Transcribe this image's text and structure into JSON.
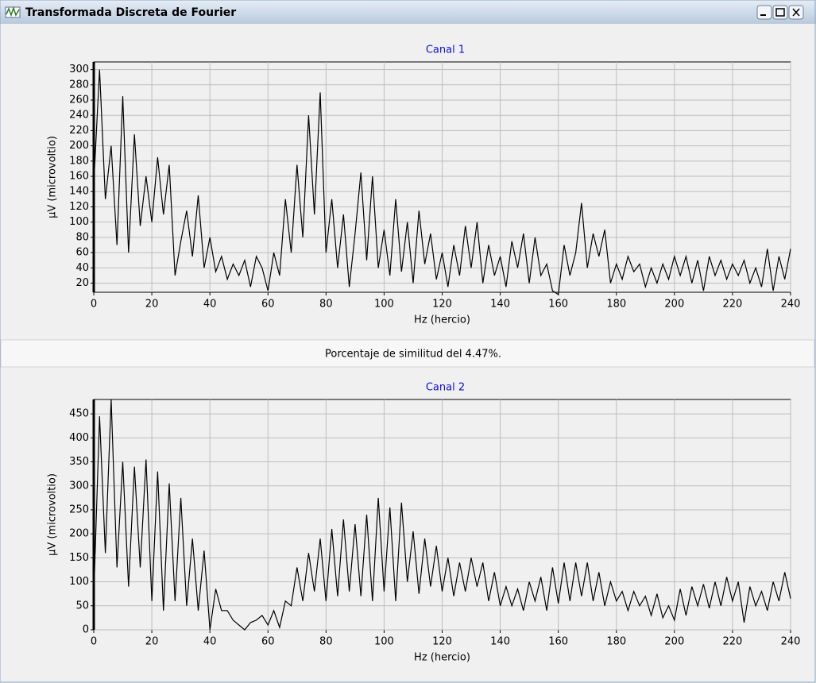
{
  "window": {
    "title": "Transformada Discreta de Fourier"
  },
  "status": "Porcentaje de similitud del 4.47%.",
  "chart_data": [
    {
      "type": "line",
      "title": "Canal 1",
      "x_label": "Hz (hercio)",
      "y_label": "µV (microvoltio)",
      "color": "#000000",
      "grid": true,
      "xlim": [
        0,
        240
      ],
      "xticks": [
        0,
        20,
        40,
        60,
        80,
        100,
        120,
        140,
        160,
        180,
        200,
        220,
        240
      ],
      "ylim": [
        8,
        310
      ],
      "yticks": [
        20,
        40,
        60,
        80,
        100,
        120,
        140,
        160,
        180,
        200,
        220,
        240,
        260,
        280,
        300
      ],
      "x": [
        0,
        2,
        4,
        6,
        8,
        10,
        12,
        14,
        16,
        18,
        20,
        22,
        24,
        26,
        28,
        30,
        32,
        34,
        36,
        38,
        40,
        42,
        44,
        46,
        48,
        50,
        52,
        54,
        56,
        58,
        60,
        62,
        64,
        66,
        68,
        70,
        72,
        74,
        76,
        78,
        80,
        82,
        84,
        86,
        88,
        90,
        92,
        94,
        96,
        98,
        100,
        102,
        104,
        106,
        108,
        110,
        112,
        114,
        116,
        118,
        120,
        122,
        124,
        126,
        128,
        130,
        132,
        134,
        136,
        138,
        140,
        142,
        144,
        146,
        148,
        150,
        152,
        154,
        156,
        158,
        160,
        162,
        164,
        166,
        168,
        170,
        172,
        174,
        176,
        178,
        180,
        182,
        184,
        186,
        188,
        190,
        192,
        194,
        196,
        198,
        200,
        202,
        204,
        206,
        208,
        210,
        212,
        214,
        216,
        218,
        220,
        222,
        224,
        226,
        228,
        230,
        232,
        234,
        236,
        238,
        240
      ],
      "values": [
        150,
        300,
        130,
        200,
        70,
        265,
        60,
        215,
        95,
        160,
        100,
        185,
        110,
        175,
        30,
        75,
        115,
        55,
        135,
        40,
        80,
        35,
        55,
        25,
        45,
        30,
        50,
        15,
        55,
        40,
        10,
        60,
        30,
        130,
        60,
        175,
        80,
        240,
        110,
        270,
        60,
        130,
        40,
        110,
        15,
        85,
        165,
        50,
        160,
        40,
        90,
        30,
        130,
        35,
        100,
        20,
        115,
        45,
        85,
        25,
        60,
        15,
        70,
        30,
        95,
        40,
        100,
        20,
        70,
        30,
        55,
        15,
        75,
        40,
        85,
        20,
        80,
        30,
        45,
        10,
        5,
        70,
        30,
        60,
        125,
        40,
        85,
        55,
        90,
        20,
        45,
        25,
        55,
        35,
        45,
        15,
        40,
        20,
        45,
        25,
        55,
        30,
        55,
        20,
        50,
        10,
        55,
        30,
        50,
        25,
        45,
        30,
        50,
        20,
        40,
        15,
        65,
        10,
        55,
        25,
        65
      ]
    },
    {
      "type": "line",
      "title": "Canal 2",
      "x_label": "Hz (hercio)",
      "y_label": "µV (microvoltio)",
      "color": "#000000",
      "grid": true,
      "xlim": [
        0,
        240
      ],
      "xticks": [
        0,
        20,
        40,
        60,
        80,
        100,
        120,
        140,
        160,
        180,
        200,
        220,
        240
      ],
      "ylim": [
        0,
        480
      ],
      "yticks": [
        0,
        50,
        100,
        150,
        200,
        250,
        300,
        350,
        400,
        450
      ],
      "x": [
        0,
        2,
        4,
        6,
        8,
        10,
        12,
        14,
        16,
        18,
        20,
        22,
        24,
        26,
        28,
        30,
        32,
        34,
        36,
        38,
        40,
        42,
        44,
        46,
        48,
        50,
        52,
        54,
        56,
        58,
        60,
        62,
        64,
        66,
        68,
        70,
        72,
        74,
        76,
        78,
        80,
        82,
        84,
        86,
        88,
        90,
        92,
        94,
        96,
        98,
        100,
        102,
        104,
        106,
        108,
        110,
        112,
        114,
        116,
        118,
        120,
        122,
        124,
        126,
        128,
        130,
        132,
        134,
        136,
        138,
        140,
        142,
        144,
        146,
        148,
        150,
        152,
        154,
        156,
        158,
        160,
        162,
        164,
        166,
        168,
        170,
        172,
        174,
        176,
        178,
        180,
        182,
        184,
        186,
        188,
        190,
        192,
        194,
        196,
        198,
        200,
        202,
        204,
        206,
        208,
        210,
        212,
        214,
        216,
        218,
        220,
        222,
        224,
        226,
        228,
        230,
        232,
        234,
        236,
        238,
        240
      ],
      "values": [
        70,
        445,
        160,
        480,
        130,
        350,
        90,
        340,
        130,
        355,
        60,
        330,
        40,
        305,
        60,
        275,
        50,
        190,
        40,
        165,
        0,
        85,
        40,
        40,
        20,
        10,
        0,
        15,
        20,
        30,
        10,
        40,
        5,
        60,
        50,
        130,
        60,
        160,
        80,
        190,
        60,
        210,
        70,
        230,
        80,
        220,
        70,
        240,
        60,
        275,
        80,
        255,
        60,
        265,
        100,
        205,
        75,
        190,
        90,
        175,
        80,
        150,
        70,
        140,
        80,
        150,
        90,
        140,
        60,
        120,
        50,
        90,
        50,
        85,
        40,
        100,
        60,
        110,
        40,
        130,
        55,
        140,
        60,
        140,
        70,
        140,
        60,
        120,
        50,
        100,
        60,
        80,
        40,
        80,
        50,
        70,
        30,
        75,
        25,
        50,
        20,
        85,
        30,
        90,
        50,
        95,
        45,
        100,
        50,
        110,
        60,
        100,
        15,
        90,
        50,
        80,
        40,
        100,
        60,
        120,
        65
      ]
    }
  ]
}
